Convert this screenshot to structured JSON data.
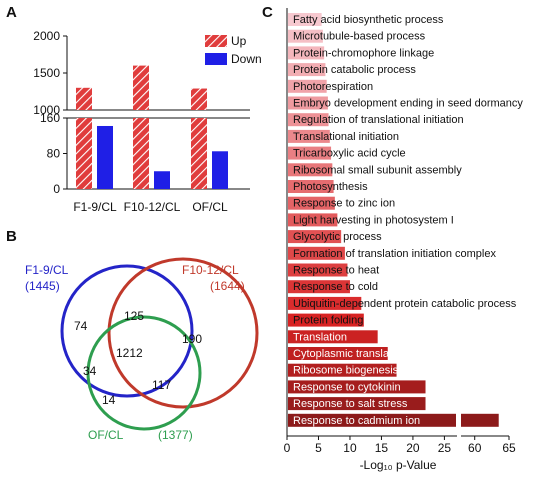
{
  "panels": {
    "a": "A",
    "b": "B",
    "c": "C"
  },
  "chart_data": [
    {
      "type": "bar",
      "categories": [
        "F1-9/CL",
        "F10-12/CL",
        "OF/CL"
      ],
      "series": [
        {
          "name": "Up",
          "values": [
            1300,
            1600,
            1290
          ],
          "color": "#e03c3c",
          "pattern": "hatched"
        },
        {
          "name": "Down",
          "values": [
            142,
            40,
            85
          ],
          "color": "#1f1fe6"
        }
      ],
      "y_axis_break": {
        "lower_range": [
          0,
          160
        ],
        "upper_range": [
          1000,
          2000
        ]
      },
      "yticks_lower": [
        "0",
        "80",
        "160"
      ],
      "yticks_upper": [
        "1000",
        "1500",
        "2000"
      ],
      "legend_position": "top-right"
    },
    {
      "type": "venn",
      "sets": [
        {
          "name": "F1-9/CL",
          "size": "(1445)",
          "color": "#2424c8"
        },
        {
          "name": "F10-12/CL",
          "size": "(1644)",
          "color": "#c0392b"
        },
        {
          "name": "OF/CL",
          "size": "(1377)",
          "color": "#2e9e4f"
        }
      ],
      "regions": {
        "only_f19": 74,
        "only_f1012": 190,
        "only_of": 14,
        "f19_f1012": 125,
        "f19_of": 34,
        "f1012_of": 117,
        "all": 1212
      }
    },
    {
      "type": "bar",
      "orientation": "horizontal",
      "categories": [
        "Fatty acid biosynthetic process",
        "Microtubule-based process",
        "Protein-chromophore linkage",
        "Protein catabolic process",
        "Photorespiration",
        "Embryo development ending in seed dormancy",
        "Regulation of translational initiation",
        "Translational initiation",
        "Tricarboxylic acid cycle",
        "Ribosomal small subunit assembly",
        "Photosynthesis",
        "Response to zinc ion",
        "Light harvesting in photosystem I",
        "Glycolytic process",
        "Formation of translation initiation complex",
        "Response to heat",
        "Response to cold",
        "Ubiquitin-dependent protein catabolic process",
        "Protein folding",
        "Translation",
        "Cytoplasmic translation",
        "Ribosome biogenesis",
        "Response to cytokinin",
        "Response to salt stress",
        "Response to cadmium ion"
      ],
      "values": [
        5.5,
        5.7,
        5.9,
        6.1,
        6.3,
        6.5,
        6.6,
        6.8,
        7.0,
        7.2,
        7.4,
        7.6,
        8.0,
        8.6,
        9.2,
        9.6,
        10.0,
        11.8,
        12.2,
        14.4,
        16.0,
        17.4,
        22.0,
        22.0,
        63.5
      ],
      "xlabel": "-Log₁₀ p-Value",
      "xticks": [
        "0",
        "5",
        "10",
        "15",
        "20",
        "25",
        "60",
        "65"
      ],
      "x_axis_break": {
        "lower_range": [
          0,
          27
        ],
        "upper_range": [
          58,
          65
        ]
      },
      "color_light": "#f7c8cf",
      "color_dark": "#8c1a1a"
    }
  ]
}
